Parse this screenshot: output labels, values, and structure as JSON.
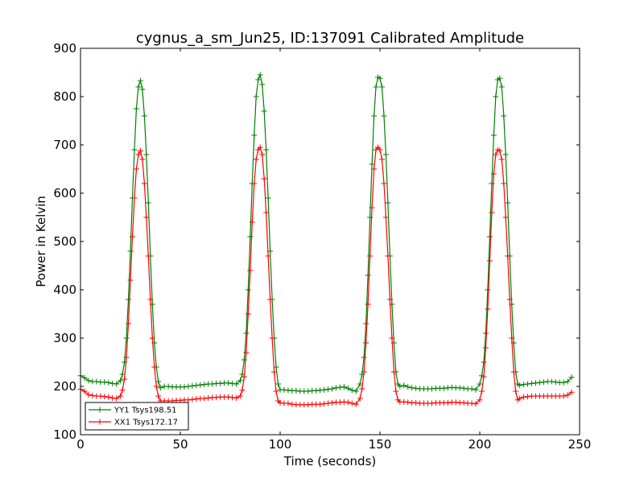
{
  "chart_data": {
    "type": "line",
    "title": "cygnus_a_sm_Jun25, ID:137091 Calibrated Amplitude",
    "xlabel": "Time (seconds)",
    "ylabel": "Power in Kelvin",
    "xlim": [
      0,
      250
    ],
    "ylim": [
      100,
      900
    ],
    "xticks": [
      "0",
      "50",
      "100",
      "150",
      "200",
      "250"
    ],
    "yticks": [
      "100",
      "200",
      "300",
      "400",
      "500",
      "600",
      "700",
      "800",
      "900"
    ],
    "grid": false,
    "legend_position": "lower-left",
    "series": [
      {
        "name": "YY1 Tsys198.51",
        "color": "#008000",
        "marker": "plus",
        "x": [
          0,
          2,
          4,
          6,
          8,
          10,
          12,
          14,
          16,
          18,
          20,
          21,
          22,
          23,
          24,
          25,
          26,
          27,
          28,
          29,
          30,
          31,
          32,
          33,
          34,
          35,
          36,
          37,
          38,
          39,
          40,
          42,
          44,
          46,
          48,
          50,
          52,
          54,
          56,
          58,
          60,
          62,
          64,
          66,
          68,
          70,
          72,
          74,
          76,
          78,
          80,
          81,
          82,
          83,
          84,
          85,
          86,
          87,
          88,
          89,
          90,
          91,
          92,
          93,
          94,
          95,
          96,
          97,
          98,
          99,
          100,
          102,
          104,
          106,
          108,
          110,
          112,
          114,
          116,
          118,
          120,
          122,
          124,
          126,
          128,
          130,
          132,
          134,
          136,
          138,
          140,
          141,
          142,
          143,
          144,
          145,
          146,
          147,
          148,
          149,
          150,
          151,
          152,
          153,
          154,
          155,
          156,
          157,
          158,
          159,
          160,
          162,
          164,
          166,
          168,
          170,
          172,
          174,
          176,
          178,
          180,
          182,
          184,
          186,
          188,
          190,
          192,
          194,
          196,
          198,
          200,
          201,
          202,
          203,
          204,
          205,
          206,
          207,
          208,
          209,
          210,
          211,
          212,
          213,
          214,
          215,
          216,
          217,
          218,
          219,
          220,
          222,
          224,
          226,
          228,
          230,
          232,
          234,
          236,
          238,
          240,
          242,
          244,
          246
        ],
        "values": [
          222,
          218,
          212,
          210,
          210,
          209,
          209,
          208,
          206,
          205,
          212,
          225,
          250,
          300,
          380,
          480,
          590,
          690,
          775,
          820,
          833,
          815,
          760,
          680,
          580,
          470,
          370,
          290,
          240,
          210,
          197,
          200,
          200,
          199,
          199,
          199,
          199,
          200,
          201,
          202,
          203,
          204,
          205,
          205,
          206,
          206,
          207,
          207,
          206,
          205,
          212,
          225,
          255,
          310,
          400,
          510,
          620,
          720,
          800,
          835,
          845,
          825,
          770,
          690,
          590,
          480,
          380,
          300,
          240,
          205,
          193,
          193,
          192,
          191,
          191,
          190,
          190,
          190,
          191,
          191,
          192,
          193,
          194,
          195,
          197,
          198,
          199,
          196,
          192,
          190,
          205,
          225,
          260,
          330,
          430,
          550,
          660,
          760,
          820,
          840,
          838,
          820,
          760,
          680,
          580,
          470,
          370,
          290,
          230,
          205,
          200,
          202,
          199,
          197,
          196,
          195,
          195,
          195,
          195,
          196,
          196,
          196,
          197,
          198,
          197,
          197,
          196,
          195,
          195,
          193,
          205,
          222,
          250,
          310,
          400,
          510,
          620,
          720,
          800,
          835,
          838,
          820,
          760,
          680,
          580,
          470,
          370,
          290,
          230,
          205,
          202,
          204,
          205,
          206,
          207,
          208,
          209,
          210,
          210,
          209,
          208,
          208,
          210,
          219
        ]
      },
      {
        "name": "XX1 Tsys172.17",
        "color": "#ff0000",
        "marker": "plus",
        "x": [
          0,
          2,
          4,
          6,
          8,
          10,
          12,
          14,
          16,
          18,
          20,
          21,
          22,
          23,
          24,
          25,
          26,
          27,
          28,
          29,
          30,
          31,
          32,
          33,
          34,
          35,
          36,
          37,
          38,
          39,
          40,
          42,
          44,
          46,
          48,
          50,
          52,
          54,
          56,
          58,
          60,
          62,
          64,
          66,
          68,
          70,
          72,
          74,
          76,
          78,
          80,
          81,
          82,
          83,
          84,
          85,
          86,
          87,
          88,
          89,
          90,
          91,
          92,
          93,
          94,
          95,
          96,
          97,
          98,
          99,
          100,
          102,
          104,
          106,
          108,
          110,
          112,
          114,
          116,
          118,
          120,
          122,
          124,
          126,
          128,
          130,
          132,
          134,
          136,
          138,
          140,
          141,
          142,
          143,
          144,
          145,
          146,
          147,
          148,
          149,
          150,
          151,
          152,
          153,
          154,
          155,
          156,
          157,
          158,
          159,
          160,
          162,
          164,
          166,
          168,
          170,
          172,
          174,
          176,
          178,
          180,
          182,
          184,
          186,
          188,
          190,
          192,
          194,
          196,
          198,
          200,
          201,
          202,
          203,
          204,
          205,
          206,
          207,
          208,
          209,
          210,
          211,
          212,
          213,
          214,
          215,
          216,
          217,
          218,
          219,
          220,
          222,
          224,
          226,
          228,
          230,
          232,
          234,
          236,
          238,
          240,
          242,
          244,
          246
        ],
        "values": [
          194,
          190,
          183,
          181,
          180,
          180,
          179,
          178,
          176,
          175,
          180,
          192,
          215,
          260,
          330,
          420,
          510,
          590,
          650,
          680,
          688,
          670,
          620,
          550,
          470,
          380,
          300,
          240,
          200,
          180,
          170,
          170,
          170,
          170,
          171,
          171,
          172,
          172,
          173,
          174,
          175,
          175,
          176,
          177,
          177,
          178,
          178,
          178,
          177,
          176,
          180,
          192,
          220,
          270,
          350,
          440,
          540,
          620,
          670,
          690,
          695,
          680,
          630,
          560,
          470,
          380,
          300,
          230,
          190,
          170,
          166,
          165,
          165,
          163,
          162,
          162,
          162,
          162,
          163,
          163,
          163,
          164,
          165,
          166,
          167,
          167,
          168,
          167,
          165,
          163,
          175,
          195,
          230,
          290,
          370,
          470,
          570,
          650,
          690,
          695,
          690,
          670,
          620,
          550,
          470,
          380,
          300,
          230,
          190,
          172,
          168,
          168,
          167,
          166,
          166,
          165,
          165,
          165,
          165,
          166,
          166,
          166,
          166,
          167,
          167,
          166,
          166,
          165,
          165,
          164,
          172,
          190,
          220,
          280,
          360,
          460,
          560,
          640,
          680,
          690,
          688,
          670,
          620,
          550,
          470,
          380,
          300,
          230,
          190,
          172,
          175,
          178,
          179,
          180,
          180,
          180,
          180,
          180,
          180,
          180,
          180,
          180,
          182,
          188
        ]
      }
    ]
  }
}
